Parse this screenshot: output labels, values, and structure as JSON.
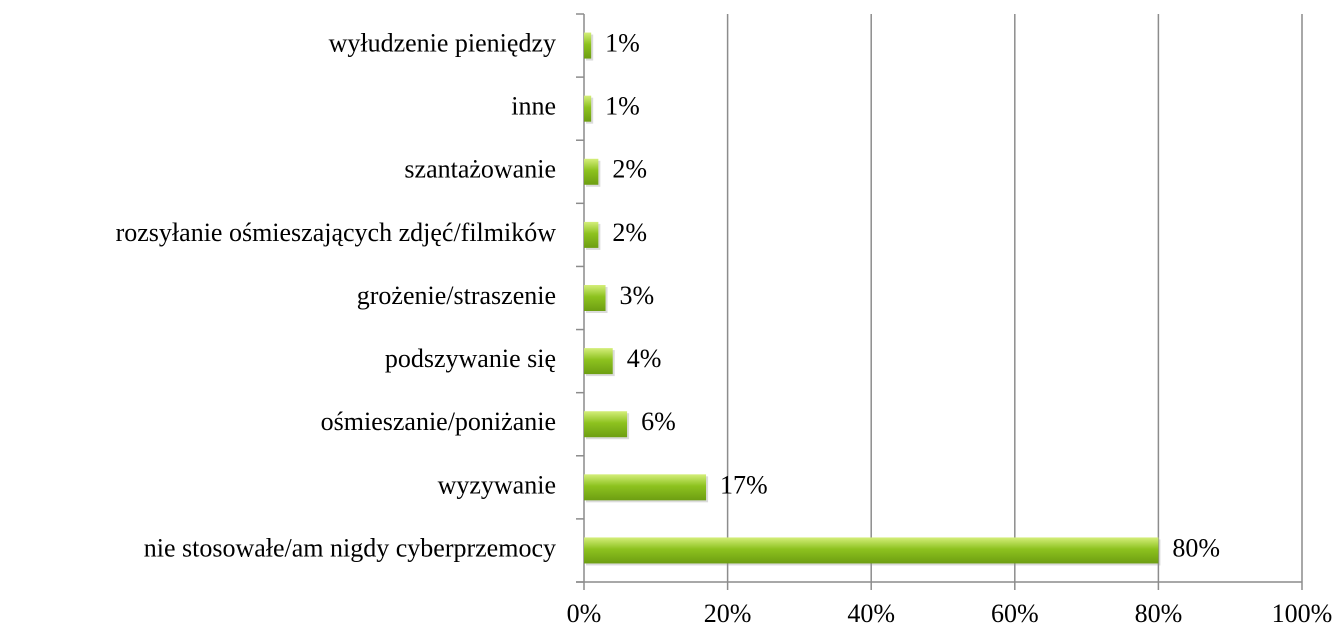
{
  "chart_data": {
    "type": "bar",
    "orientation": "horizontal",
    "categories": [
      "wyłudzenie pieniędzy",
      "inne",
      "szantażowanie",
      "rozsyłanie ośmieszających zdjęć/filmików",
      "grożenie/straszenie",
      "podszywanie się",
      "ośmieszanie/poniżanie",
      "wyzywanie",
      "nie stosowałe/am nigdy cyberprzemocy"
    ],
    "values": [
      1,
      1,
      2,
      2,
      3,
      4,
      6,
      17,
      80
    ],
    "value_labels": [
      "1%",
      "1%",
      "2%",
      "2%",
      "3%",
      "4%",
      "6%",
      "17%",
      "80%"
    ],
    "color": "#8dc21f",
    "xlim": [
      0,
      100
    ],
    "xticks": [
      {
        "value": 0,
        "label": "0%"
      },
      {
        "value": 20,
        "label": "20%"
      },
      {
        "value": 40,
        "label": "40%"
      },
      {
        "value": 60,
        "label": "60%"
      },
      {
        "value": 80,
        "label": "80%"
      },
      {
        "value": 100,
        "label": "100%"
      }
    ],
    "grid": true
  }
}
